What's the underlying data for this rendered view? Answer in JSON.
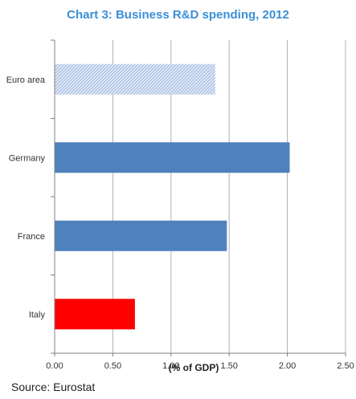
{
  "title": "Chart 3: Business R&D spending, 2012",
  "source": "Source: Eurostat",
  "colors": {
    "title": "#3a8fd8",
    "bar": "#4f81bd",
    "italy": "#ff0000",
    "euro_hatch": "#a9c1e4",
    "grid": "#b0b0b0",
    "axis": "#808080"
  },
  "chart_data": {
    "type": "bar",
    "orientation": "horizontal",
    "categories": [
      "Euro area",
      "Germany",
      "France",
      "Italy"
    ],
    "values": [
      1.38,
      2.02,
      1.48,
      0.69
    ],
    "highlight": {
      "Euro area": "hatched",
      "Italy": "red"
    },
    "xlabel": "(% of GDP)",
    "ylabel": "",
    "xlim": [
      0,
      2.5
    ],
    "xticks": [
      "0.00",
      "0.50",
      "1.00",
      "1.50",
      "2.00",
      "2.50"
    ],
    "grid": "vertical"
  }
}
